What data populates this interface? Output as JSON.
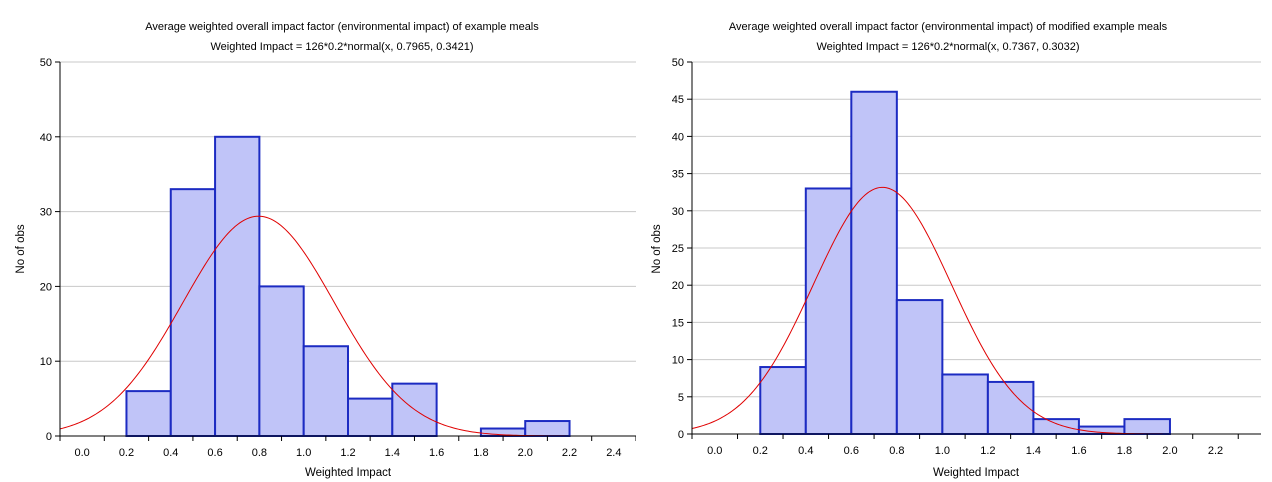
{
  "colors": {
    "bar_fill": "#c0c4f8",
    "bar_stroke": "#1c2bc2",
    "curve": "#e00000",
    "grid": "#c8c8c8",
    "axis": "#000000"
  },
  "chart_data": [
    {
      "type": "bar",
      "title": "Average weighted overall impact factor (environmental impact) of example meals",
      "subtitle": "Weighted Impact = 126*0.2*normal(x, 0.7965, 0.3421)",
      "xlabel": "Weighted Impact",
      "ylabel": "No of obs",
      "xlim": [
        -0.1,
        2.5
      ],
      "ylim": [
        0,
        50
      ],
      "x_ticks": [
        "0.0",
        "0.2",
        "0.4",
        "0.6",
        "0.8",
        "1.0",
        "1.2",
        "1.4",
        "1.6",
        "1.8",
        "2.0",
        "2.2",
        "2.4"
      ],
      "y_ticks": [
        "0",
        "10",
        "20",
        "30",
        "40",
        "50"
      ],
      "bin_width": 0.2,
      "bins": [
        {
          "start": 0.2,
          "end": 0.4,
          "count": 6
        },
        {
          "start": 0.4,
          "end": 0.6,
          "count": 33
        },
        {
          "start": 0.6,
          "end": 0.8,
          "count": 40
        },
        {
          "start": 0.8,
          "end": 1.0,
          "count": 20
        },
        {
          "start": 1.0,
          "end": 1.2,
          "count": 12
        },
        {
          "start": 1.2,
          "end": 1.4,
          "count": 5
        },
        {
          "start": 1.4,
          "end": 1.6,
          "count": 7
        },
        {
          "start": 1.8,
          "end": 2.0,
          "count": 1
        },
        {
          "start": 2.0,
          "end": 2.2,
          "count": 2
        }
      ],
      "fit": {
        "n": 126,
        "bin_width": 0.2,
        "mean": 0.7965,
        "sd": 0.3421
      },
      "grid": true
    },
    {
      "type": "bar",
      "title": "Average weighted overall impact factor (environmental impact) of modified example meals",
      "subtitle": "Weighted Impact = 126*0.2*normal(x, 0.7367, 0.3032)",
      "xlabel": "Weighted Impact",
      "ylabel": "No of obs",
      "xlim": [
        -0.1,
        2.4
      ],
      "ylim": [
        0,
        50
      ],
      "x_ticks": [
        "0.0",
        "0.2",
        "0.4",
        "0.6",
        "0.8",
        "1.0",
        "1.2",
        "1.4",
        "1.6",
        "1.8",
        "2.0",
        "2.2"
      ],
      "y_ticks": [
        "0",
        "5",
        "10",
        "15",
        "20",
        "25",
        "30",
        "35",
        "40",
        "45",
        "50"
      ],
      "bin_width": 0.2,
      "bins": [
        {
          "start": 0.2,
          "end": 0.4,
          "count": 9
        },
        {
          "start": 0.4,
          "end": 0.6,
          "count": 33
        },
        {
          "start": 0.6,
          "end": 0.8,
          "count": 46
        },
        {
          "start": 0.8,
          "end": 1.0,
          "count": 18
        },
        {
          "start": 1.0,
          "end": 1.2,
          "count": 8
        },
        {
          "start": 1.2,
          "end": 1.4,
          "count": 7
        },
        {
          "start": 1.4,
          "end": 1.6,
          "count": 2
        },
        {
          "start": 1.6,
          "end": 1.8,
          "count": 1
        },
        {
          "start": 1.8,
          "end": 2.0,
          "count": 2
        }
      ],
      "fit": {
        "n": 126,
        "bin_width": 0.2,
        "mean": 0.7367,
        "sd": 0.3032
      },
      "grid": true
    }
  ]
}
